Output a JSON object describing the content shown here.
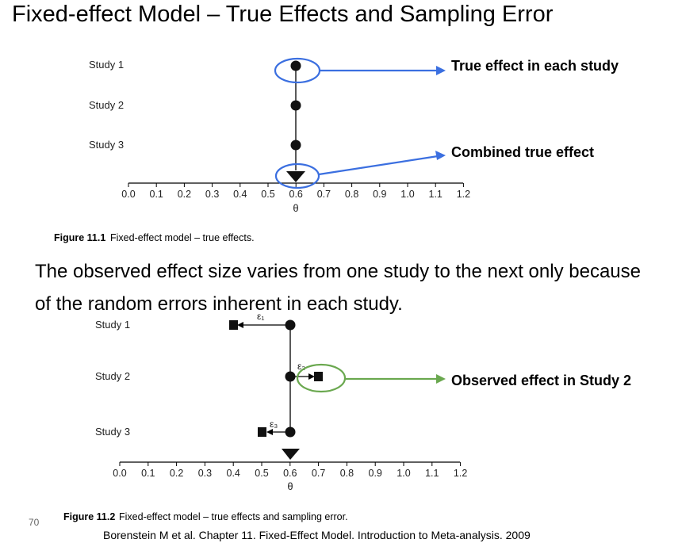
{
  "slide": {
    "title": "Fixed-effect Model – True Effects and Sampling Error",
    "body": "The observed effect size varies from one study to the next only because of the random errors inherent in each study.",
    "page_number": "70",
    "citation": "Borenstein M et al. Chapter 11. Fixed-Effect Model. Introduction to Meta-analysis. 2009"
  },
  "figure1": {
    "studies": [
      "Study 1",
      "Study 2",
      "Study 3"
    ],
    "axis_ticks": [
      "0.0",
      "0.1",
      "0.2",
      "0.3",
      "0.4",
      "0.5",
      "0.6",
      "0.7",
      "0.8",
      "0.9",
      "1.0",
      "1.1",
      "1.2"
    ],
    "axis_label": "θ",
    "caption_bold": "Figure 11.1",
    "caption": "Fixed-effect model – true effects.",
    "true_effects": [
      0.6,
      0.6,
      0.6
    ],
    "combined_effect": 0.6,
    "callout_true": "True effect in each study",
    "callout_combined": "Combined true effect",
    "highlight_color": "#3b6fe0"
  },
  "figure2": {
    "studies": [
      "Study 1",
      "Study 2",
      "Study 3"
    ],
    "axis_ticks": [
      "0.0",
      "0.1",
      "0.2",
      "0.3",
      "0.4",
      "0.5",
      "0.6",
      "0.7",
      "0.8",
      "0.9",
      "1.0",
      "1.1",
      "1.2"
    ],
    "axis_label": "θ",
    "caption_bold": "Figure 11.2",
    "caption": "Fixed-effect model – true effects and sampling error.",
    "true_effects": [
      0.6,
      0.6,
      0.6
    ],
    "observed_effects": [
      0.4,
      0.7,
      0.5
    ],
    "error_labels": [
      "ε₁",
      "ε₂",
      "ε₃"
    ],
    "combined_effect": 0.6,
    "callout_observed": "Observed effect in Study 2",
    "highlight_color": "#6aa84f"
  }
}
